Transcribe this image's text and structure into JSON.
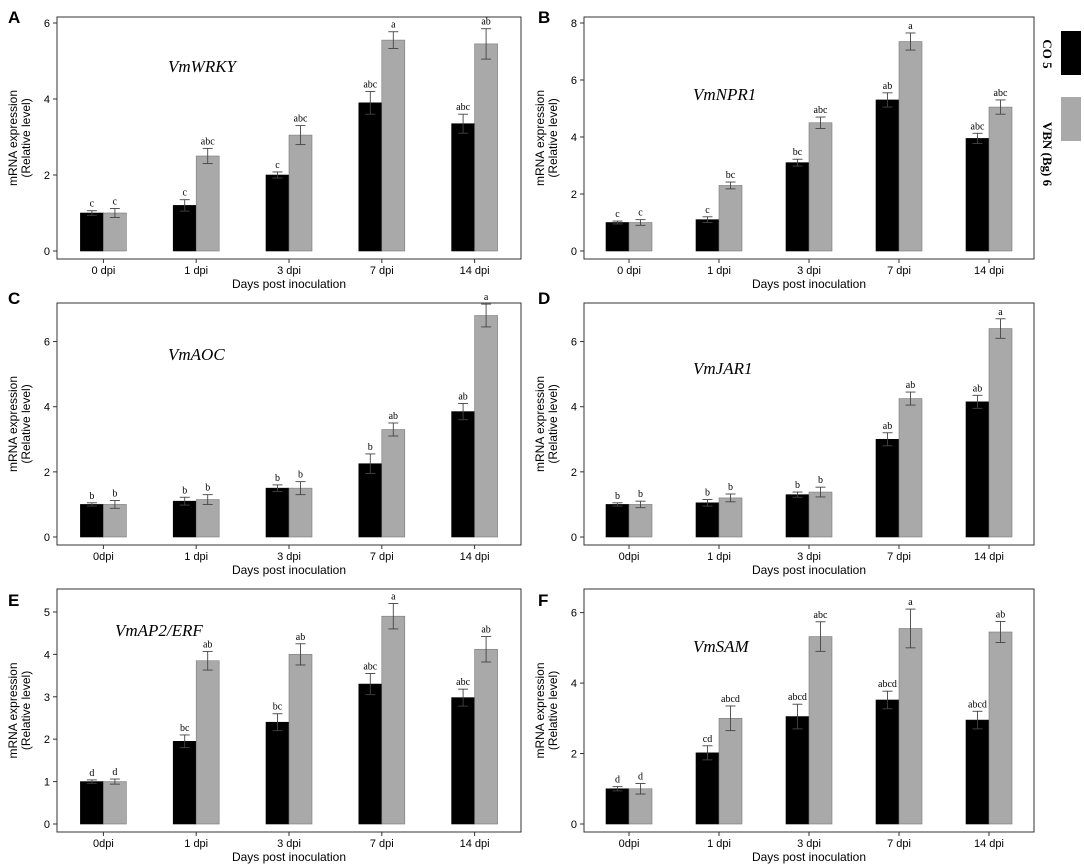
{
  "colors": {
    "co5": "#000000",
    "vbn": "#a9a9a9",
    "axis": "#333333",
    "errorbar": "#444444"
  },
  "legend": [
    {
      "label": "CO 5",
      "color": "#000000"
    },
    {
      "label": "VBN (Bg) 6",
      "color": "#a9a9a9"
    }
  ],
  "chart_data": [
    {
      "panel": "A",
      "type": "bar",
      "title": "VmWRKY",
      "xlabel": "Days post inoculation",
      "ylabel_line1": "mRNA expression",
      "ylabel_line2": "(Relative level)",
      "categories": [
        "0 dpi",
        "1 dpi",
        "3 dpi",
        "7 dpi",
        "14 dpi"
      ],
      "ylim": [
        0,
        6
      ],
      "yticks": [
        0,
        2,
        4,
        6
      ],
      "series": [
        {
          "name": "CO 5",
          "values": [
            1.0,
            1.2,
            2.0,
            3.9,
            3.35
          ],
          "errors": [
            0.06,
            0.15,
            0.08,
            0.3,
            0.25
          ],
          "labels": [
            "c",
            "c",
            "c",
            "abc",
            "abc"
          ]
        },
        {
          "name": "VBN (Bg) 6",
          "values": [
            1.0,
            2.5,
            3.05,
            5.55,
            5.45
          ],
          "errors": [
            0.12,
            0.2,
            0.25,
            0.22,
            0.4
          ],
          "labels": [
            "c",
            "abc",
            "abc",
            "a",
            "ab"
          ]
        }
      ]
    },
    {
      "panel": "B",
      "type": "bar",
      "title": "VmNPR1",
      "xlabel": "Days post inoculation",
      "ylabel_line1": "mRNA expression",
      "ylabel_line2": "(Relative level)",
      "categories": [
        "0 dpi",
        "1 dpi",
        "3 dpi",
        "7 dpi",
        "14 dpi"
      ],
      "ylim": [
        0,
        8
      ],
      "yticks": [
        0,
        2,
        4,
        6,
        8
      ],
      "series": [
        {
          "name": "CO 5",
          "values": [
            1.0,
            1.1,
            3.1,
            5.3,
            3.95
          ],
          "errors": [
            0.05,
            0.1,
            0.12,
            0.25,
            0.18
          ],
          "labels": [
            "c",
            "c",
            "bc",
            "ab",
            "abc"
          ]
        },
        {
          "name": "VBN (Bg) 6",
          "values": [
            1.0,
            2.3,
            4.5,
            7.35,
            5.05
          ],
          "errors": [
            0.1,
            0.12,
            0.2,
            0.3,
            0.25
          ],
          "labels": [
            "c",
            "bc",
            "abc",
            "a",
            "abc"
          ]
        }
      ]
    },
    {
      "panel": "C",
      "type": "bar",
      "title": "VmAOC",
      "xlabel": "Days post inoculation",
      "ylabel_line1": "mRNA expression",
      "ylabel_line2": "(Relative level)",
      "categories": [
        "0dpi",
        "1 dpi",
        "3 dpi",
        "7 dpi",
        "14 dpi"
      ],
      "ylim": [
        0,
        7
      ],
      "yticks": [
        0,
        2,
        4,
        6
      ],
      "series": [
        {
          "name": "CO 5",
          "values": [
            1.0,
            1.1,
            1.5,
            2.25,
            3.85
          ],
          "errors": [
            0.05,
            0.12,
            0.1,
            0.3,
            0.25
          ],
          "labels": [
            "b",
            "b",
            "b",
            "b",
            "ab"
          ]
        },
        {
          "name": "VBN (Bg) 6",
          "values": [
            1.0,
            1.15,
            1.5,
            3.3,
            6.8
          ],
          "errors": [
            0.12,
            0.15,
            0.2,
            0.2,
            0.35
          ],
          "labels": [
            "b",
            "b",
            "b",
            "ab",
            "a"
          ]
        }
      ]
    },
    {
      "panel": "D",
      "type": "bar",
      "title": "VmJAR1",
      "xlabel": "Days post inoculation",
      "ylabel_line1": "mRNA expression",
      "ylabel_line2": "(Relative level)",
      "categories": [
        "0dpi",
        "1 dpi",
        "3 dpi",
        "7 dpi",
        "14 dpi"
      ],
      "ylim": [
        0,
        7
      ],
      "yticks": [
        0,
        2,
        4,
        6
      ],
      "series": [
        {
          "name": "CO 5",
          "values": [
            1.0,
            1.05,
            1.3,
            3.0,
            4.15
          ],
          "errors": [
            0.05,
            0.1,
            0.08,
            0.2,
            0.2
          ],
          "labels": [
            "b",
            "b",
            "b",
            "ab",
            "ab"
          ]
        },
        {
          "name": "VBN (Bg) 6",
          "values": [
            1.0,
            1.2,
            1.38,
            4.25,
            6.4
          ],
          "errors": [
            0.1,
            0.12,
            0.15,
            0.2,
            0.3
          ],
          "labels": [
            "b",
            "b",
            "b",
            "ab",
            "a"
          ]
        }
      ]
    },
    {
      "panel": "E",
      "type": "bar",
      "title": "VmAP2/ERF",
      "xlabel": "Days post inoculation",
      "ylabel_line1": "mRNA expression",
      "ylabel_line2": "(Relative level)",
      "categories": [
        "0dpi",
        "1 dpi",
        "3 dpi",
        "7 dpi",
        "14 dpi"
      ],
      "ylim": [
        0,
        5.4
      ],
      "yticks": [
        0,
        1,
        2,
        3,
        4,
        5
      ],
      "series": [
        {
          "name": "CO 5",
          "values": [
            1.0,
            1.95,
            2.4,
            3.3,
            2.98
          ],
          "errors": [
            0.04,
            0.15,
            0.2,
            0.25,
            0.2
          ],
          "labels": [
            "d",
            "bc",
            "bc",
            "abc",
            "abc"
          ]
        },
        {
          "name": "VBN (Bg) 6",
          "values": [
            1.0,
            3.85,
            4.0,
            4.9,
            4.12
          ],
          "errors": [
            0.06,
            0.22,
            0.25,
            0.3,
            0.3
          ],
          "labels": [
            "d",
            "ab",
            "ab",
            "a",
            "ab"
          ]
        }
      ]
    },
    {
      "panel": "F",
      "type": "bar",
      "title": "VmSAM",
      "xlabel": "Days post inoculation",
      "ylabel_line1": "mRNA expression",
      "ylabel_line2": "(Relative level)",
      "categories": [
        "0dpi",
        "1 dpi",
        "3 dpi",
        "7 dpi",
        "14 dpi"
      ],
      "ylim": [
        0,
        6.5
      ],
      "yticks": [
        0,
        2,
        4,
        6
      ],
      "series": [
        {
          "name": "CO 5",
          "values": [
            1.0,
            2.02,
            3.05,
            3.52,
            2.95
          ],
          "errors": [
            0.06,
            0.2,
            0.35,
            0.25,
            0.25
          ],
          "labels": [
            "d",
            "cd",
            "abcd",
            "abcd",
            "abcd"
          ]
        },
        {
          "name": "VBN (Bg) 6",
          "values": [
            1.0,
            3.0,
            5.32,
            5.55,
            5.45
          ],
          "errors": [
            0.15,
            0.35,
            0.42,
            0.55,
            0.3
          ],
          "labels": [
            "d",
            "abcd",
            "abc",
            "a",
            "ab"
          ]
        }
      ]
    }
  ]
}
